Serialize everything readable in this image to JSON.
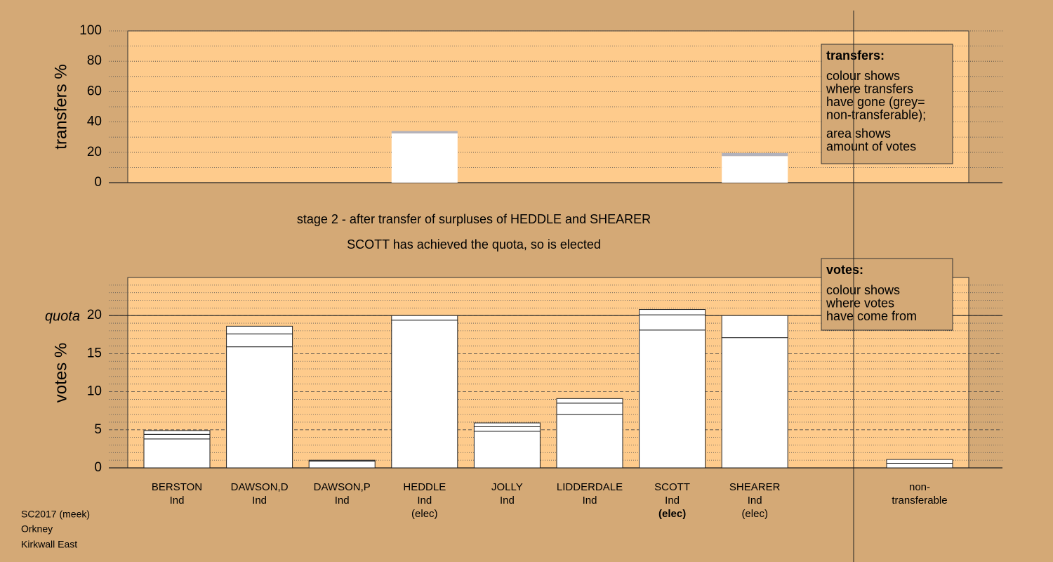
{
  "chart_data": [
    {
      "type": "stacked-bar",
      "ylabel": "transfers %",
      "ylim": [
        0,
        100
      ],
      "yticks": [
        0,
        20,
        40,
        60,
        80,
        100
      ],
      "minor_yticks": [
        10,
        30,
        50,
        70,
        90
      ],
      "series": [
        {
          "color": "#ffffff",
          "values": [
            0,
            0,
            0,
            32.5,
            0,
            0,
            0,
            17.5
          ]
        },
        {
          "color": "#b2b2bc",
          "values": [
            0,
            0,
            0,
            1.5,
            0,
            0,
            0,
            2
          ]
        }
      ],
      "legend": {
        "title": "transfers:",
        "lines": [
          "colour shows",
          "where transfers",
          "have gone (grey=",
          "non-transferable);",
          "area shows",
          "amount of votes"
        ]
      }
    },
    {
      "type": "stacked-bar",
      "title": "stage 2 - after transfer of surpluses of HEDDLE and SHEARER",
      "subtitle": "SCOTT has achieved the quota, so is elected",
      "ylabel": "votes %",
      "ylim": [
        0,
        25
      ],
      "yticks": [
        0,
        5,
        10,
        15,
        20
      ],
      "minor_yticks": [
        1,
        2,
        3,
        4,
        6,
        7,
        8,
        9,
        11,
        12,
        13,
        14,
        16,
        17,
        18,
        19,
        21,
        22,
        23,
        24
      ],
      "quota": {
        "label": "quota",
        "value": 20
      },
      "categories": [
        [
          "BERSTON",
          "Ind"
        ],
        [
          "DAWSON,D",
          "Ind"
        ],
        [
          "DAWSON,P",
          "Ind"
        ],
        [
          "HEDDLE",
          "Ind",
          "(elec)"
        ],
        [
          "JOLLY",
          "Ind"
        ],
        [
          "LIDDERDALE",
          "Ind"
        ],
        [
          "SCOTT",
          "Ind",
          "(elec)"
        ],
        [
          "SHEARER",
          "Ind",
          "(elec)"
        ],
        [
          "non-",
          "transferable"
        ]
      ],
      "highlight_category": 6,
      "series": [
        {
          "color": "#ffffff",
          "values": [
            3.8,
            15.9,
            0.9,
            19.4,
            4.8,
            7.0,
            18.1,
            17.1,
            0.6
          ]
        },
        {
          "color": "#ffffff",
          "values": [
            0.6,
            1.7,
            0.1,
            0.6,
            0.6,
            1.5,
            2.0,
            2.9,
            0.5
          ]
        },
        {
          "color": "#ffffff",
          "values": [
            0.5,
            1.0,
            0,
            0,
            0.5,
            0.6,
            0.7,
            0,
            0
          ]
        }
      ],
      "legend": {
        "title": "votes:",
        "lines": [
          "colour shows",
          "where votes",
          "have come from"
        ]
      }
    }
  ],
  "footer": [
    "SC2017 (meek)",
    "Orkney",
    "Kirkwall East"
  ]
}
